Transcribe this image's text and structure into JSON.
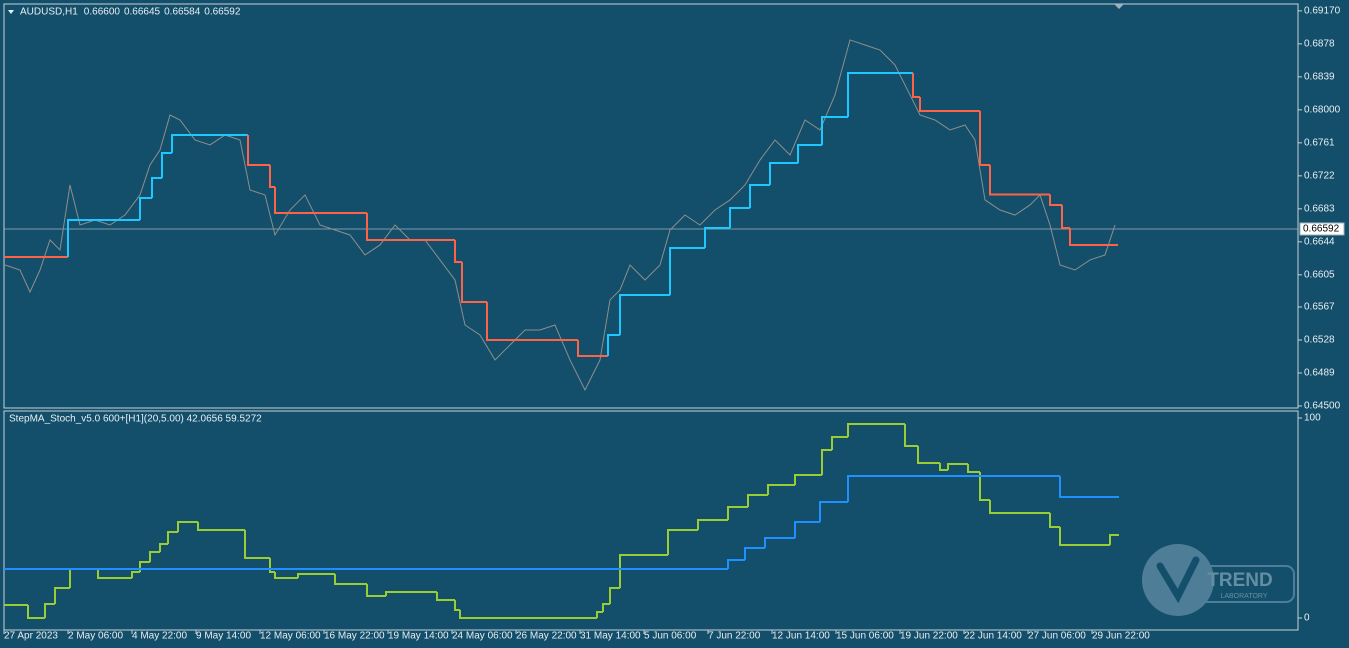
{
  "chart_data": [
    {
      "type": "line",
      "title": "AUDUSD,H1",
      "ohlc": [
        "0.66600",
        "0.66645",
        "0.66584",
        "0.66592"
      ],
      "xlim": [
        0,
        1294
      ],
      "ylim": [
        0.64476,
        0.69251
      ],
      "yticks": [
        {
          "value": 0.6917,
          "label": "0.69170"
        },
        0.6878,
        0.6839,
        {
          "value": 0.68,
          "label": "0.68000"
        },
        0.6761,
        0.6722,
        0.6683,
        0.6644,
        0.6605,
        0.6567,
        0.6528,
        0.6489,
        {
          "value": 0.645,
          "label": "0.64500"
        }
      ],
      "xticks": [
        {
          "value": 0,
          "label": "27 Apr 2023"
        },
        {
          "value": 64,
          "label": "2 May 06:00"
        },
        {
          "value": 128,
          "label": "4 May 22:00"
        },
        {
          "value": 192,
          "label": "9 May 14:00"
        },
        {
          "value": 256,
          "label": "12 May 06:00"
        },
        {
          "value": 320,
          "label": "16 May 22:00"
        },
        {
          "value": 384,
          "label": "19 May 14:00"
        },
        {
          "value": 448,
          "label": "24 May 06:00"
        },
        {
          "value": 512,
          "label": "26 May 22:00"
        },
        {
          "value": 576,
          "label": "31 May 14:00"
        },
        {
          "value": 640,
          "label": "5 Jun 06:00"
        },
        {
          "value": 704,
          "label": "7 Jun 22:00"
        },
        {
          "value": 768,
          "label": "12 Jun 14:00"
        },
        {
          "value": 832,
          "label": "15 Jun 06:00"
        },
        {
          "value": 896,
          "label": "19 Jun 22:00"
        },
        {
          "value": 960,
          "label": "22 Jun 14:00"
        },
        {
          "value": 1024,
          "label": "27 Jun 06:00"
        },
        {
          "value": 1088,
          "label": "29 Jun 22:00"
        }
      ],
      "last_price": 0.66592,
      "series": [
        {
          "color": "#8e8e8e",
          "x": [
            1,
            16,
            26,
            36,
            46,
            56,
            66,
            76,
            91,
            106,
            121,
            136,
            146,
            156,
            166,
            176,
            191,
            206,
            221,
            236,
            246,
            261,
            271,
            286,
            301,
            316,
            331,
            346,
            361,
            376,
            391,
            406,
            421,
            436,
            451,
            461,
            476,
            491,
            506,
            521,
            536,
            551,
            566,
            581,
            596,
            606,
            616,
            626,
            641,
            656,
            666,
            681,
            696,
            711,
            726,
            741,
            756,
            771,
            786,
            801,
            816,
            831,
            846,
            861,
            876,
            891,
            906,
            916,
            931,
            946,
            961,
            971,
            981,
            996,
            1011,
            1026,
            1036,
            1046,
            1056,
            1071,
            1086,
            1101,
            1111
          ],
          "values": [
            0.66166,
            0.66107,
            0.65847,
            0.66107,
            0.66462,
            0.66344,
            0.67112,
            0.66639,
            0.66698,
            0.66639,
            0.66757,
            0.66994,
            0.67348,
            0.67526,
            0.67939,
            0.6788,
            0.67644,
            0.67585,
            0.67703,
            0.67644,
            0.67053,
            0.66994,
            0.66521,
            0.66816,
            0.66994,
            0.66639,
            0.6658,
            0.66521,
            0.66285,
            0.66403,
            0.66639,
            0.66462,
            0.66462,
            0.66226,
            0.65989,
            0.65457,
            0.65339,
            0.65044,
            0.65221,
            0.65398,
            0.65398,
            0.65457,
            0.65044,
            0.64689,
            0.65044,
            0.65753,
            0.65871,
            0.66166,
            0.65989,
            0.66166,
            0.6658,
            0.66757,
            0.66639,
            0.66816,
            0.66935,
            0.67112,
            0.67407,
            0.67644,
            0.67466,
            0.6788,
            0.67762,
            0.68176,
            0.68826,
            0.68766,
            0.68707,
            0.6853,
            0.68176,
            0.67939,
            0.6788,
            0.67762,
            0.67821,
            0.67644,
            0.66935,
            0.66816,
            0.66757,
            0.66876,
            0.66994,
            0.66639,
            0.66166,
            0.66107,
            0.66226,
            0.66285,
            0.66639
          ]
        },
        {
          "bins": [
            0,
            64,
            136,
            148,
            158,
            168,
            244,
            266,
            271,
            363,
            451,
            458,
            483,
            574,
            604,
            616,
            666,
            701,
            726,
            746,
            766,
            794,
            818,
            844,
            909,
            916,
            976,
            986,
            1046,
            1058,
            1066,
            1114
          ],
          "values": [
            0.66261,
            0.66698,
            0.66958,
            0.67194,
            0.6749,
            0.67703,
            0.67348,
            0.67088,
            0.66781,
            0.66462,
            0.66202,
            0.65729,
            0.6528,
            0.65091,
            0.65339,
            0.65812,
            0.66367,
            0.66604,
            0.6684,
            0.67112,
            0.67372,
            0.67585,
            0.67915,
            0.68435,
            0.68152,
            0.67986,
            0.67348,
            0.67,
            0.66876,
            0.66604,
            0.66403
          ],
          "colors": [
            "#ff6347",
            "#1ec8ff",
            "#1ec8ff",
            "#1ec8ff",
            "#1ec8ff",
            "#1ec8ff",
            "#ff6347",
            "#ff6347",
            "#ff6347",
            "#ff6347",
            "#ff6347",
            "#ff6347",
            "#ff6347",
            "#ff6347",
            "#1ec8ff",
            "#1ec8ff",
            "#1ec8ff",
            "#1ec8ff",
            "#1ec8ff",
            "#1ec8ff",
            "#1ec8ff",
            "#1ec8ff",
            "#1ec8ff",
            "#1ec8ff",
            "#ff6347",
            "#ff6347",
            "#ff6347",
            "#ff6347",
            "#ff6347",
            "#ff6347",
            "#ff6347"
          ]
        }
      ]
    },
    {
      "type": "line",
      "title": "StepMA_Stoch_v5.0 600+[H1](20,5.00) 42.0656 59.5272",
      "xlim": [
        0,
        1294
      ],
      "ylim": [
        -6,
        103.5
      ],
      "yticks": [
        0,
        100
      ],
      "series": [
        {
          "color": "#9acd32",
          "step": true,
          "x": [
            0,
            24,
            41,
            51,
            66,
            94,
            128,
            136,
            146,
            156,
            164,
            174,
            194,
            241,
            266,
            271,
            294,
            331,
            363,
            382,
            433,
            451,
            456,
            593,
            599,
            606,
            616,
            664,
            694,
            724,
            744,
            764,
            791,
            818,
            828,
            844,
            901,
            914,
            936,
            944,
            964,
            976,
            986,
            1046,
            1056,
            1106,
            1114
          ],
          "values": [
            6.5,
            0,
            7,
            15,
            24.5,
            20,
            23,
            28,
            33,
            37,
            43,
            48,
            44,
            30,
            23,
            20,
            22,
            17,
            11,
            13,
            9,
            4,
            0,
            3,
            7,
            15,
            31.5,
            44,
            49,
            55.5,
            61.5,
            66.5,
            71.5,
            84,
            90.5,
            97,
            86,
            77.5,
            74,
            77,
            73,
            59,
            52.5,
            45.5,
            36.5,
            41.5,
            41.5
          ]
        },
        {
          "color": "#1e90ff",
          "step": true,
          "x": [
            0,
            724,
            741,
            761,
            791,
            816,
            844,
            1056,
            1114
          ],
          "values": [
            24.5,
            29,
            35,
            40,
            48,
            58,
            71,
            60.5,
            60.5
          ]
        }
      ]
    }
  ],
  "logo": {
    "title": "TREND",
    "subtitle": "LABORATORY"
  }
}
